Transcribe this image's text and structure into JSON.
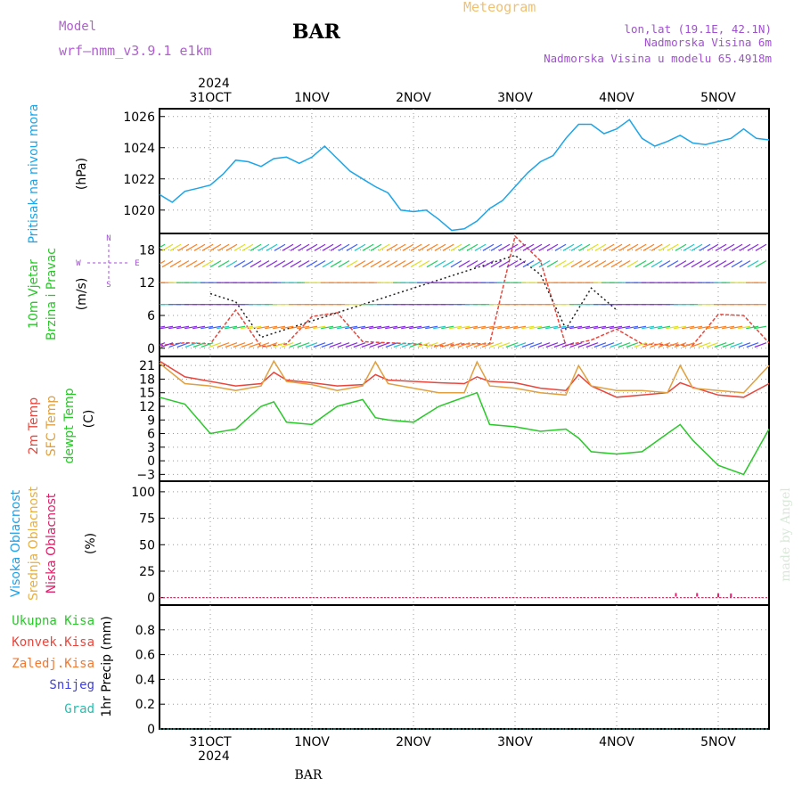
{
  "header": {
    "model_label": "Model",
    "model_name": "wrf—nmm_v3.9.1  e1km",
    "station": "BAR",
    "title": "Meteogram",
    "coords": "lon,lat (19.1E, 42.1N)",
    "elev": "Nadmorska Visina 6m",
    "model_elev": "Nadmorska Visina u modelu 65.4918m"
  },
  "footer": {
    "station": "BAR",
    "watermark": "made by Angel"
  },
  "colors": {
    "pressure": "#1ca5e8",
    "temp2m": "#e8463c",
    "sfc": "#e0a040",
    "dew": "#28c828",
    "high_cloud": "#20a0e8",
    "mid_cloud": "#e8b040",
    "low_cloud": "#e0206a",
    "title_orange": "#f0c070",
    "purple": "#a050d0"
  },
  "x_axis": {
    "range": [
      "2024-10-30T12:00",
      "2024-11-05T12:00"
    ],
    "year": "2024",
    "ticks": [
      {
        "t": "2024-10-31T00:00",
        "label": "31OCT"
      },
      {
        "t": "2024-11-01T00:00",
        "label": "1NOV"
      },
      {
        "t": "2024-11-02T00:00",
        "label": "2NOV"
      },
      {
        "t": "2024-11-03T00:00",
        "label": "3NOV"
      },
      {
        "t": "2024-11-04T00:00",
        "label": "4NOV"
      },
      {
        "t": "2024-11-05T00:00",
        "label": "5NOV"
      }
    ]
  },
  "panel_labels": {
    "pressure": [
      "Pritisak na nivou mora"
    ],
    "pressure_unit": "(hPa)",
    "wind": [
      "10m Vjetar",
      "Brzina i Pravac"
    ],
    "wind_unit": "(m/s)",
    "wind_compass": {
      "n": "N",
      "s": "S",
      "e": "E",
      "w": "W"
    },
    "temp": [
      "2m Temp",
      "SFC Temp",
      "dewpt Temp"
    ],
    "temp_unit": "(C)",
    "cloud": [
      "Visoka Oblacnost",
      "Srednja Oblacnost",
      "Niska Oblacnost"
    ],
    "cloud_unit": "(%)",
    "precip_unit": "1hr Precip (mm)",
    "precip_legend": [
      "Ukupna Kisa",
      "Konvek.Kisa",
      "Zaledj.Kisa",
      "Snijeg",
      "Grad"
    ]
  },
  "chart_data": [
    {
      "type": "line",
      "panel": "pressure",
      "ylabel": "(hPa)",
      "ylim": [
        1018.5,
        1026.5
      ],
      "yticks": [
        1020,
        1022,
        1024,
        1026
      ],
      "grid": true,
      "series": [
        {
          "x": [
            "2024-10-30T12:00",
            "2024-10-30T15:00",
            "2024-10-30T18:00",
            "2024-10-30T21:00",
            "2024-10-31T00:00",
            "2024-10-31T03:00",
            "2024-10-31T06:00",
            "2024-10-31T09:00",
            "2024-10-31T12:00",
            "2024-10-31T15:00",
            "2024-10-31T18:00",
            "2024-10-31T21:00",
            "2024-11-01T00:00",
            "2024-11-01T03:00",
            "2024-11-01T06:00",
            "2024-11-01T09:00",
            "2024-11-01T12:00",
            "2024-11-01T15:00",
            "2024-11-01T18:00",
            "2024-11-01T21:00",
            "2024-11-02T00:00",
            "2024-11-02T03:00",
            "2024-11-02T06:00",
            "2024-11-02T09:00",
            "2024-11-02T12:00",
            "2024-11-02T15:00",
            "2024-11-02T18:00",
            "2024-11-02T21:00",
            "2024-11-03T00:00",
            "2024-11-03T03:00",
            "2024-11-03T06:00",
            "2024-11-03T09:00",
            "2024-11-03T12:00",
            "2024-11-03T15:00",
            "2024-11-03T18:00",
            "2024-11-03T21:00",
            "2024-11-04T00:00",
            "2024-11-04T03:00",
            "2024-11-04T06:00",
            "2024-11-04T09:00",
            "2024-11-04T12:00",
            "2024-11-04T15:00",
            "2024-11-04T18:00",
            "2024-11-04T21:00",
            "2024-11-05T00:00",
            "2024-11-05T03:00",
            "2024-11-05T06:00",
            "2024-11-05T09:00",
            "2024-11-05T12:00"
          ],
          "y": [
            1021.0,
            1020.5,
            1021.2,
            1021.4,
            1021.6,
            1022.3,
            1023.2,
            1023.1,
            1022.8,
            1023.3,
            1023.4,
            1023.0,
            1023.4,
            1024.1,
            1023.3,
            1022.5,
            1022.0,
            1021.5,
            1021.1,
            1020.0,
            1019.9,
            1020.0,
            1019.4,
            1018.7,
            1018.8,
            1019.3,
            1020.1,
            1020.6,
            1021.5,
            1022.4,
            1023.1,
            1023.5,
            1024.6,
            1025.5,
            1025.5,
            1024.9,
            1025.2,
            1025.8,
            1024.6,
            1024.1,
            1024.4,
            1024.8,
            1024.3,
            1024.2,
            1024.4,
            1024.6,
            1025.2,
            1024.6,
            1024.5
          ]
        }
      ]
    },
    {
      "type": "line",
      "panel": "wind",
      "ylabel": "(m/s)",
      "ylim": [
        -1.5,
        21
      ],
      "yticks": [
        0,
        6,
        12,
        18
      ],
      "grid": true,
      "series": [
        {
          "name": "speed",
          "color": "#e8463c",
          "x": [
            "2024-10-30T12:00",
            "2024-10-30T18:00",
            "2024-10-31T00:00",
            "2024-10-31T06:00",
            "2024-10-31T12:00",
            "2024-10-31T18:00",
            "2024-11-01T00:00",
            "2024-11-01T06:00",
            "2024-11-01T12:00",
            "2024-11-01T18:00",
            "2024-11-02T00:00",
            "2024-11-02T06:00",
            "2024-11-02T12:00",
            "2024-11-02T18:00",
            "2024-11-03T00:00",
            "2024-11-03T06:00",
            "2024-11-03T12:00",
            "2024-11-03T18:00",
            "2024-11-04T00:00",
            "2024-11-04T06:00",
            "2024-11-04T12:00",
            "2024-11-04T18:00",
            "2024-11-05T00:00",
            "2024-11-05T06:00",
            "2024-11-05T12:00"
          ],
          "y": [
            0.5,
            1.0,
            0.8,
            7.0,
            0.3,
            0.8,
            5.8,
            6.5,
            1.2,
            1.0,
            0.8,
            0.4,
            0.8,
            0.8,
            20.5,
            16.0,
            0.5,
            1.5,
            3.5,
            0.8,
            0.6,
            0.6,
            6.2,
            6.0,
            1.0
          ]
        },
        {
          "name": "gust",
          "color": "#202020",
          "x": [
            "2024-10-31T00:00",
            "2024-10-31T06:00",
            "2024-10-31T12:00",
            "2024-11-03T00:00",
            "2024-11-03T06:00",
            "2024-11-03T12:00",
            "2024-11-03T18:00",
            "2024-11-04T00:00"
          ],
          "y": [
            10.0,
            8.5,
            2.0,
            17.0,
            13.5,
            3.5,
            11.0,
            7.0
          ]
        }
      ]
    },
    {
      "type": "line",
      "panel": "temperature",
      "ylabel": "(C)",
      "ylim": [
        -4.5,
        23
      ],
      "yticks": [
        -3,
        0,
        3,
        6,
        9,
        12,
        15,
        18,
        21
      ],
      "grid": true,
      "series": [
        {
          "name": "2m Temp",
          "color": "#e8463c",
          "x": [
            "2024-10-30T12:00",
            "2024-10-30T18:00",
            "2024-10-31T00:00",
            "2024-10-31T06:00",
            "2024-10-31T12:00",
            "2024-10-31T15:00",
            "2024-10-31T18:00",
            "2024-11-01T00:00",
            "2024-11-01T06:00",
            "2024-11-01T12:00",
            "2024-11-01T15:00",
            "2024-11-01T18:00",
            "2024-11-02T00:00",
            "2024-11-02T06:00",
            "2024-11-02T12:00",
            "2024-11-02T15:00",
            "2024-11-02T18:00",
            "2024-11-03T00:00",
            "2024-11-03T06:00",
            "2024-11-03T12:00",
            "2024-11-03T15:00",
            "2024-11-03T18:00",
            "2024-11-04T00:00",
            "2024-11-04T06:00",
            "2024-11-04T12:00",
            "2024-11-04T15:00",
            "2024-11-04T18:00",
            "2024-11-05T00:00",
            "2024-11-05T06:00",
            "2024-11-05T12:00"
          ],
          "y": [
            22.0,
            18.5,
            17.5,
            16.5,
            17.0,
            19.5,
            17.8,
            17.2,
            16.5,
            16.8,
            19.0,
            17.8,
            17.5,
            17.2,
            17.0,
            18.5,
            17.5,
            17.2,
            16.0,
            15.5,
            19.0,
            16.5,
            14.0,
            14.5,
            15.0,
            17.2,
            16.2,
            14.5,
            14.0,
            17.0
          ]
        },
        {
          "name": "SFC Temp",
          "color": "#e0a040",
          "x": [
            "2024-10-30T12:00",
            "2024-10-30T18:00",
            "2024-10-31T00:00",
            "2024-10-31T06:00",
            "2024-10-31T12:00",
            "2024-10-31T15:00",
            "2024-10-31T18:00",
            "2024-11-01T00:00",
            "2024-11-01T06:00",
            "2024-11-01T12:00",
            "2024-11-01T15:00",
            "2024-11-01T18:00",
            "2024-11-02T00:00",
            "2024-11-02T06:00",
            "2024-11-02T12:00",
            "2024-11-02T15:00",
            "2024-11-02T18:00",
            "2024-11-03T00:00",
            "2024-11-03T06:00",
            "2024-11-03T12:00",
            "2024-11-03T15:00",
            "2024-11-03T18:00",
            "2024-11-04T00:00",
            "2024-11-04T06:00",
            "2024-11-04T12:00",
            "2024-11-04T15:00",
            "2024-11-04T18:00",
            "2024-11-05T00:00",
            "2024-11-05T06:00",
            "2024-11-05T12:00"
          ],
          "y": [
            21.5,
            17.0,
            16.5,
            15.5,
            16.5,
            22.0,
            17.5,
            16.8,
            15.5,
            16.5,
            21.8,
            17.0,
            16.0,
            15.0,
            15.0,
            21.8,
            16.5,
            16.0,
            15.0,
            14.5,
            21.0,
            16.5,
            15.5,
            15.5,
            15.0,
            21.0,
            16.0,
            15.5,
            15.0,
            21.0
          ]
        },
        {
          "name": "dewpt Temp",
          "color": "#28c828",
          "x": [
            "2024-10-30T12:00",
            "2024-10-30T18:00",
            "2024-10-31T00:00",
            "2024-10-31T06:00",
            "2024-10-31T12:00",
            "2024-10-31T15:00",
            "2024-10-31T18:00",
            "2024-11-01T00:00",
            "2024-11-01T06:00",
            "2024-11-01T12:00",
            "2024-11-01T15:00",
            "2024-11-01T18:00",
            "2024-11-02T00:00",
            "2024-11-02T06:00",
            "2024-11-02T12:00",
            "2024-11-02T15:00",
            "2024-11-02T18:00",
            "2024-11-03T00:00",
            "2024-11-03T06:00",
            "2024-11-03T12:00",
            "2024-11-03T15:00",
            "2024-11-03T18:00",
            "2024-11-04T00:00",
            "2024-11-04T06:00",
            "2024-11-04T12:00",
            "2024-11-04T15:00",
            "2024-11-04T18:00",
            "2024-11-05T00:00",
            "2024-11-05T06:00",
            "2024-11-05T12:00"
          ],
          "y": [
            14.0,
            12.5,
            6.0,
            7.0,
            12.0,
            13.0,
            8.5,
            8.0,
            12.0,
            13.5,
            9.5,
            9.0,
            8.5,
            12.0,
            14.0,
            15.0,
            8.0,
            7.5,
            6.5,
            7.0,
            5.0,
            2.0,
            1.5,
            2.0,
            6.0,
            8.0,
            4.5,
            -1.0,
            -3.0,
            7.0
          ]
        }
      ]
    },
    {
      "type": "bar",
      "panel": "cloud",
      "ylabel": "(%)",
      "ylim": [
        -7,
        110
      ],
      "yticks": [
        0,
        25,
        50,
        75,
        100
      ],
      "grid": true,
      "series": [
        {
          "name": "Visoka Oblacnost",
          "values": [
            0
          ]
        },
        {
          "name": "Srednja Oblacnost",
          "values": [
            0
          ]
        },
        {
          "name": "Niska Oblacnost",
          "x": [
            "2024-11-04T14:00",
            "2024-11-04T19:00",
            "2024-11-05T00:00",
            "2024-11-05T03:00"
          ],
          "values": [
            1,
            1,
            0.5,
            0.5
          ]
        }
      ]
    },
    {
      "type": "bar",
      "panel": "precip",
      "ylabel": "1hr Precip (mm)",
      "ylim": [
        0,
        1.0
      ],
      "yticks": [
        0,
        0.2,
        0.4,
        0.6,
        0.8
      ],
      "grid": true,
      "series": [
        {
          "name": "Ukupna Kisa",
          "values": [
            0
          ]
        },
        {
          "name": "Konvek.Kisa",
          "values": [
            0
          ]
        },
        {
          "name": "Zaledj.Kisa",
          "values": [
            0
          ]
        },
        {
          "name": "Snijeg",
          "values": [
            0
          ]
        },
        {
          "name": "Grad",
          "values": [
            0
          ]
        }
      ]
    }
  ],
  "wind_barb_rows": [
    {
      "speed": 19,
      "dir_deg": 60,
      "pattern": "ne"
    },
    {
      "speed": 16,
      "dir_deg": 60,
      "pattern": "ne"
    },
    {
      "speed": 12,
      "dir_deg": 90,
      "pattern": "e"
    },
    {
      "speed": 8,
      "dir_deg": 90,
      "pattern": "e"
    },
    {
      "speed": 4,
      "dir_deg": 80,
      "pattern": "e"
    },
    {
      "speed": 1,
      "dir_deg": 70,
      "pattern": "e"
    }
  ]
}
